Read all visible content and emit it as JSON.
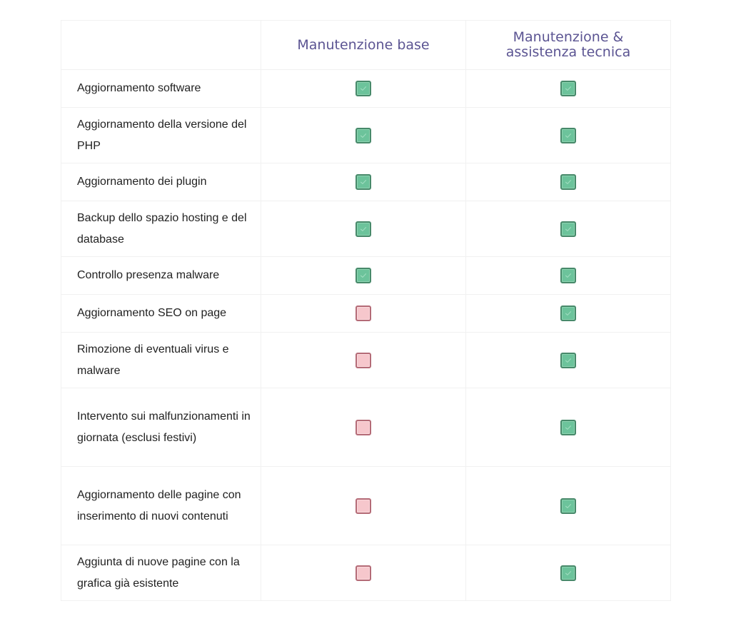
{
  "table": {
    "header": {
      "feature_column_label": "",
      "plans": [
        "Manutenzione base",
        "Manutenzione & assistenza tecnica"
      ]
    },
    "rows": [
      {
        "feature": "Aggiornamento software",
        "base": true,
        "assist": true
      },
      {
        "feature": "Aggiornamento della versione del PHP",
        "base": true,
        "assist": true
      },
      {
        "feature": "Aggiornamento dei plugin",
        "base": true,
        "assist": true
      },
      {
        "feature": "Backup dello spazio hosting e del database",
        "base": true,
        "assist": true
      },
      {
        "feature": "Controllo presenza malware",
        "base": true,
        "assist": true
      },
      {
        "feature": "Aggiornamento SEO on page",
        "base": false,
        "assist": true
      },
      {
        "feature": "Rimozione di eventuali virus e malware",
        "base": false,
        "assist": true
      },
      {
        "feature": "Intervento sui malfunzionamenti in giornata (esclusi festivi)",
        "base": false,
        "assist": true
      },
      {
        "feature": "Aggiornamento delle pagine con inserimento di nuovi contenuti",
        "base": false,
        "assist": true
      },
      {
        "feature": "Aggiunta di nuove pagine con la grafica già esistente",
        "base": false,
        "assist": true
      }
    ]
  },
  "icons": {
    "included": "check-included-icon",
    "excluded": "not-included-icon"
  },
  "colors": {
    "plan_title": "#5b5492",
    "included_fill": "#6cc39b",
    "included_border": "#47896a",
    "excluded_fill": "#f6c7cc",
    "excluded_border": "#b46b77"
  }
}
